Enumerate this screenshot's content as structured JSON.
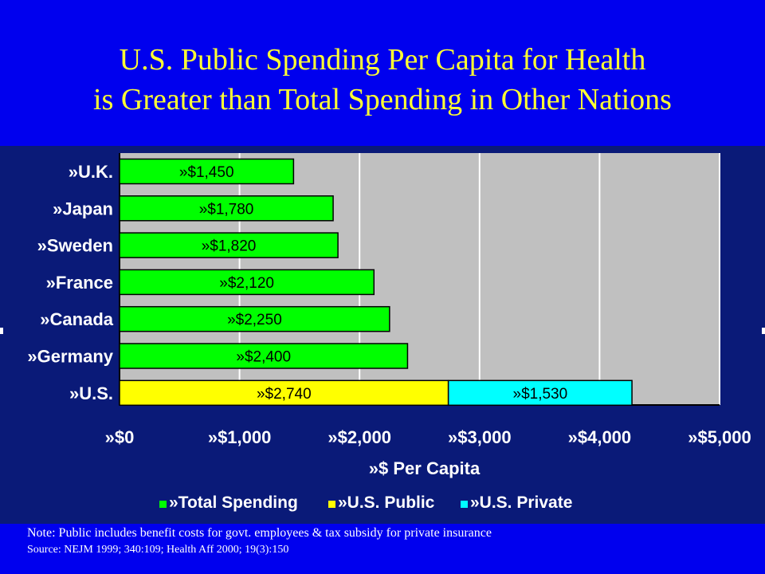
{
  "slide": {
    "title_line1": "U.S. Public Spending Per Capita for Health",
    "title_line2": "is Greater than Total Spending in Other Nations",
    "note": "Note: Public includes benefit costs for govt. employees & tax subsidy for private insurance",
    "source": "Source: NEJM 1999; 340:109; Health Aff 2000; 19(3):150"
  },
  "colors": {
    "background": "#0000ee",
    "title": "#ffff33",
    "chart_panel": "#0a1a78",
    "plot_area": "#c0c0c0",
    "total_spending": "#00ff00",
    "us_public": "#ffff00",
    "us_private": "#00ffff"
  },
  "chart_data": {
    "type": "bar",
    "orientation": "horizontal",
    "stacked": true,
    "categories": [
      "»U.K.",
      "»Japan",
      "»Sweden",
      "»France",
      "»Canada",
      "»Germany",
      "»U.S."
    ],
    "series": [
      {
        "name": "»Total Spending",
        "color": "#00ff00",
        "values": [
          1450,
          1780,
          1820,
          2120,
          2250,
          2400,
          null
        ],
        "labels": [
          "»$1,450",
          "»$1,780",
          "»$1,820",
          "»$2,120",
          "»$2,250",
          "»$2,400",
          ""
        ]
      },
      {
        "name": "»U.S. Public",
        "color": "#ffff00",
        "values": [
          null,
          null,
          null,
          null,
          null,
          null,
          2740
        ],
        "labels": [
          "",
          "",
          "",
          "",
          "",
          "",
          "»$2,740"
        ]
      },
      {
        "name": "»U.S. Private",
        "color": "#00ffff",
        "values": [
          null,
          null,
          null,
          null,
          null,
          null,
          1530
        ],
        "labels": [
          "",
          "",
          "",
          "",
          "",
          "",
          "»$1,530"
        ]
      }
    ],
    "x_ticks": [
      0,
      1000,
      2000,
      3000,
      4000,
      5000
    ],
    "x_tick_labels": [
      "»$0",
      "»$1,000",
      "»$2,000",
      "»$3,000",
      "»$4,000",
      "»$5,000"
    ],
    "xlabel": "»$ Per Capita",
    "xlim": [
      0,
      5000
    ],
    "grid": true,
    "legend_position": "bottom"
  }
}
